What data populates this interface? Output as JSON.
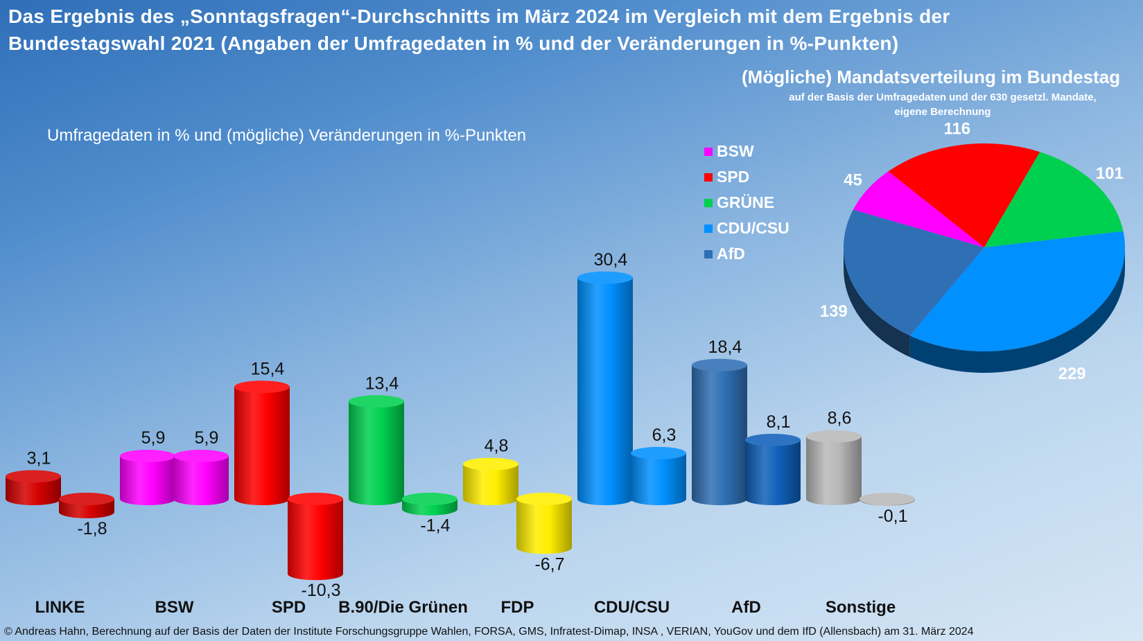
{
  "title": {
    "line1": "Das Ergebnis des „Sonntagsfragen“-Durchschnitts im März 2024 im Vergleich mit dem Ergebnis der",
    "line2": "Bundestagswahl 2021 (Angaben der Umfragedaten in % und der Veränderungen in %-Punkten)"
  },
  "footer": "© Andreas Hahn, Berechnung auf der Basis der Daten der Institute Forschungsgruppe Wahlen, FORSA, GMS, Infratest-Dimap, INSA , VERIAN, YouGov und dem IfD (Allensbach) am 31. März 2024",
  "chart_data": [
    {
      "type": "bar",
      "title": "Umfragedaten in % und (mögliche) Veränderungen in %-Punkten",
      "categories": [
        "LINKE",
        "BSW",
        "SPD",
        "B.90/Die Grünen",
        "FDP",
        "CDU/CSU",
        "AfD",
        "Sonstige"
      ],
      "series": [
        {
          "values": [
            3.1,
            5.9,
            15.4,
            13.4,
            4.8,
            30.4,
            18.4,
            8.6
          ]
        },
        {
          "values": [
            -1.8,
            5.9,
            -10.3,
            -1.4,
            -6.7,
            6.3,
            8.1,
            -0.1
          ]
        }
      ],
      "value_labels": {
        "umfrage": [
          "3,1",
          "5,9",
          "15,4",
          "13,4",
          "4,8",
          "30,4",
          "18,4",
          "8,6"
        ],
        "veraenderung": [
          "-1,8",
          "5,9",
          "-10,3",
          "-1,4",
          "-6,7",
          "6,3",
          "8,1",
          "-0,1"
        ]
      },
      "colors": [
        "#d40000",
        "#ff00ff",
        "#ff0000",
        "#00d050",
        "#ffee00",
        "#0090ff",
        "#2f6fb4",
        "#b8b8b8"
      ],
      "change_colors": [
        "#d40000",
        "#ff00ff",
        "#ff0000",
        "#00d050",
        "#ffee00",
        "#0090ff",
        "#1060b8",
        "#b8b8b8"
      ]
    },
    {
      "type": "pie",
      "title": "(Mögliche) Mandatsverteilung im Bundestag",
      "subtitle_line1": "auf der Basis der Umfragedaten und der 630 gesetzl. Mandate,",
      "subtitle_line2": "eigene Berechnung",
      "legend": [
        {
          "label": "BSW",
          "color": "#ff00ff"
        },
        {
          "label": "SPD",
          "color": "#ff0000"
        },
        {
          "label": "GRÜNE",
          "color": "#00d050"
        },
        {
          "label": "CDU/CSU",
          "color": "#0090ff"
        },
        {
          "label": "AfD",
          "color": "#2f6fb4"
        }
      ],
      "slices": [
        {
          "label": "CDU/CSU",
          "value": 229,
          "color": "#0090ff"
        },
        {
          "label": "AfD",
          "value": 139,
          "color": "#2f6fb4"
        },
        {
          "label": "BSW",
          "value": 45,
          "color": "#ff00ff"
        },
        {
          "label": "SPD",
          "value": 116,
          "color": "#ff0000"
        },
        {
          "label": "GRÜNE",
          "value": 101,
          "color": "#00d050"
        }
      ]
    }
  ]
}
